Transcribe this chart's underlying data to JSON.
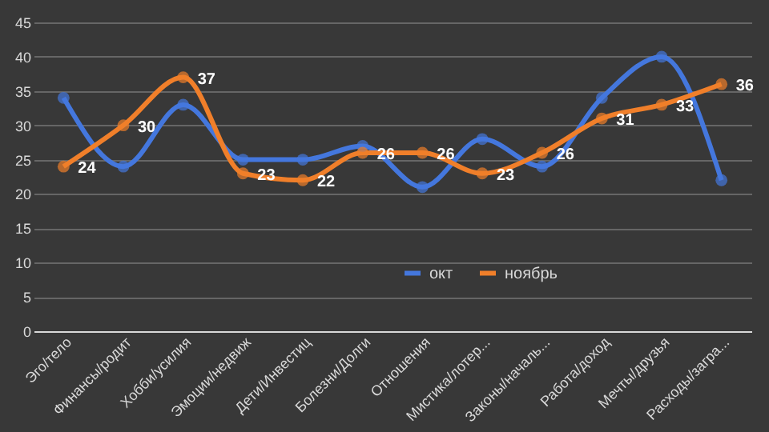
{
  "chart_data": {
    "type": "line",
    "categories": [
      "Эго/тело",
      "Финансы/родит",
      "Хобби/усилия",
      "Эмоции/недвиж",
      "Дети/Инвестиц",
      "Болезни/Долги",
      "Отношения",
      "Мистика/лотер...",
      "Законы/началь...",
      "Работа/доход",
      "Мечты/друзья",
      "Расходы/загра..."
    ],
    "series": [
      {
        "name": "окт",
        "color": "#4477dd",
        "values": [
          34,
          24,
          33,
          25,
          25,
          27,
          21,
          28,
          24,
          34,
          40,
          22
        ]
      },
      {
        "name": "ноябрь",
        "color": "#f07f2a",
        "values": [
          24,
          30,
          37,
          23,
          22,
          26,
          26,
          23,
          26,
          31,
          33,
          36
        ],
        "value_labels": [
          "24",
          "30",
          "37",
          "23",
          "22",
          "26",
          "26",
          "23",
          "26",
          "31",
          "33",
          "36"
        ]
      }
    ],
    "ylim": [
      0,
      45
    ],
    "yticks": [
      0,
      5,
      10,
      15,
      20,
      25,
      30,
      35,
      40,
      45
    ],
    "grid": "y",
    "legend": "bottom",
    "marker": "circle",
    "line_style": "solid"
  }
}
